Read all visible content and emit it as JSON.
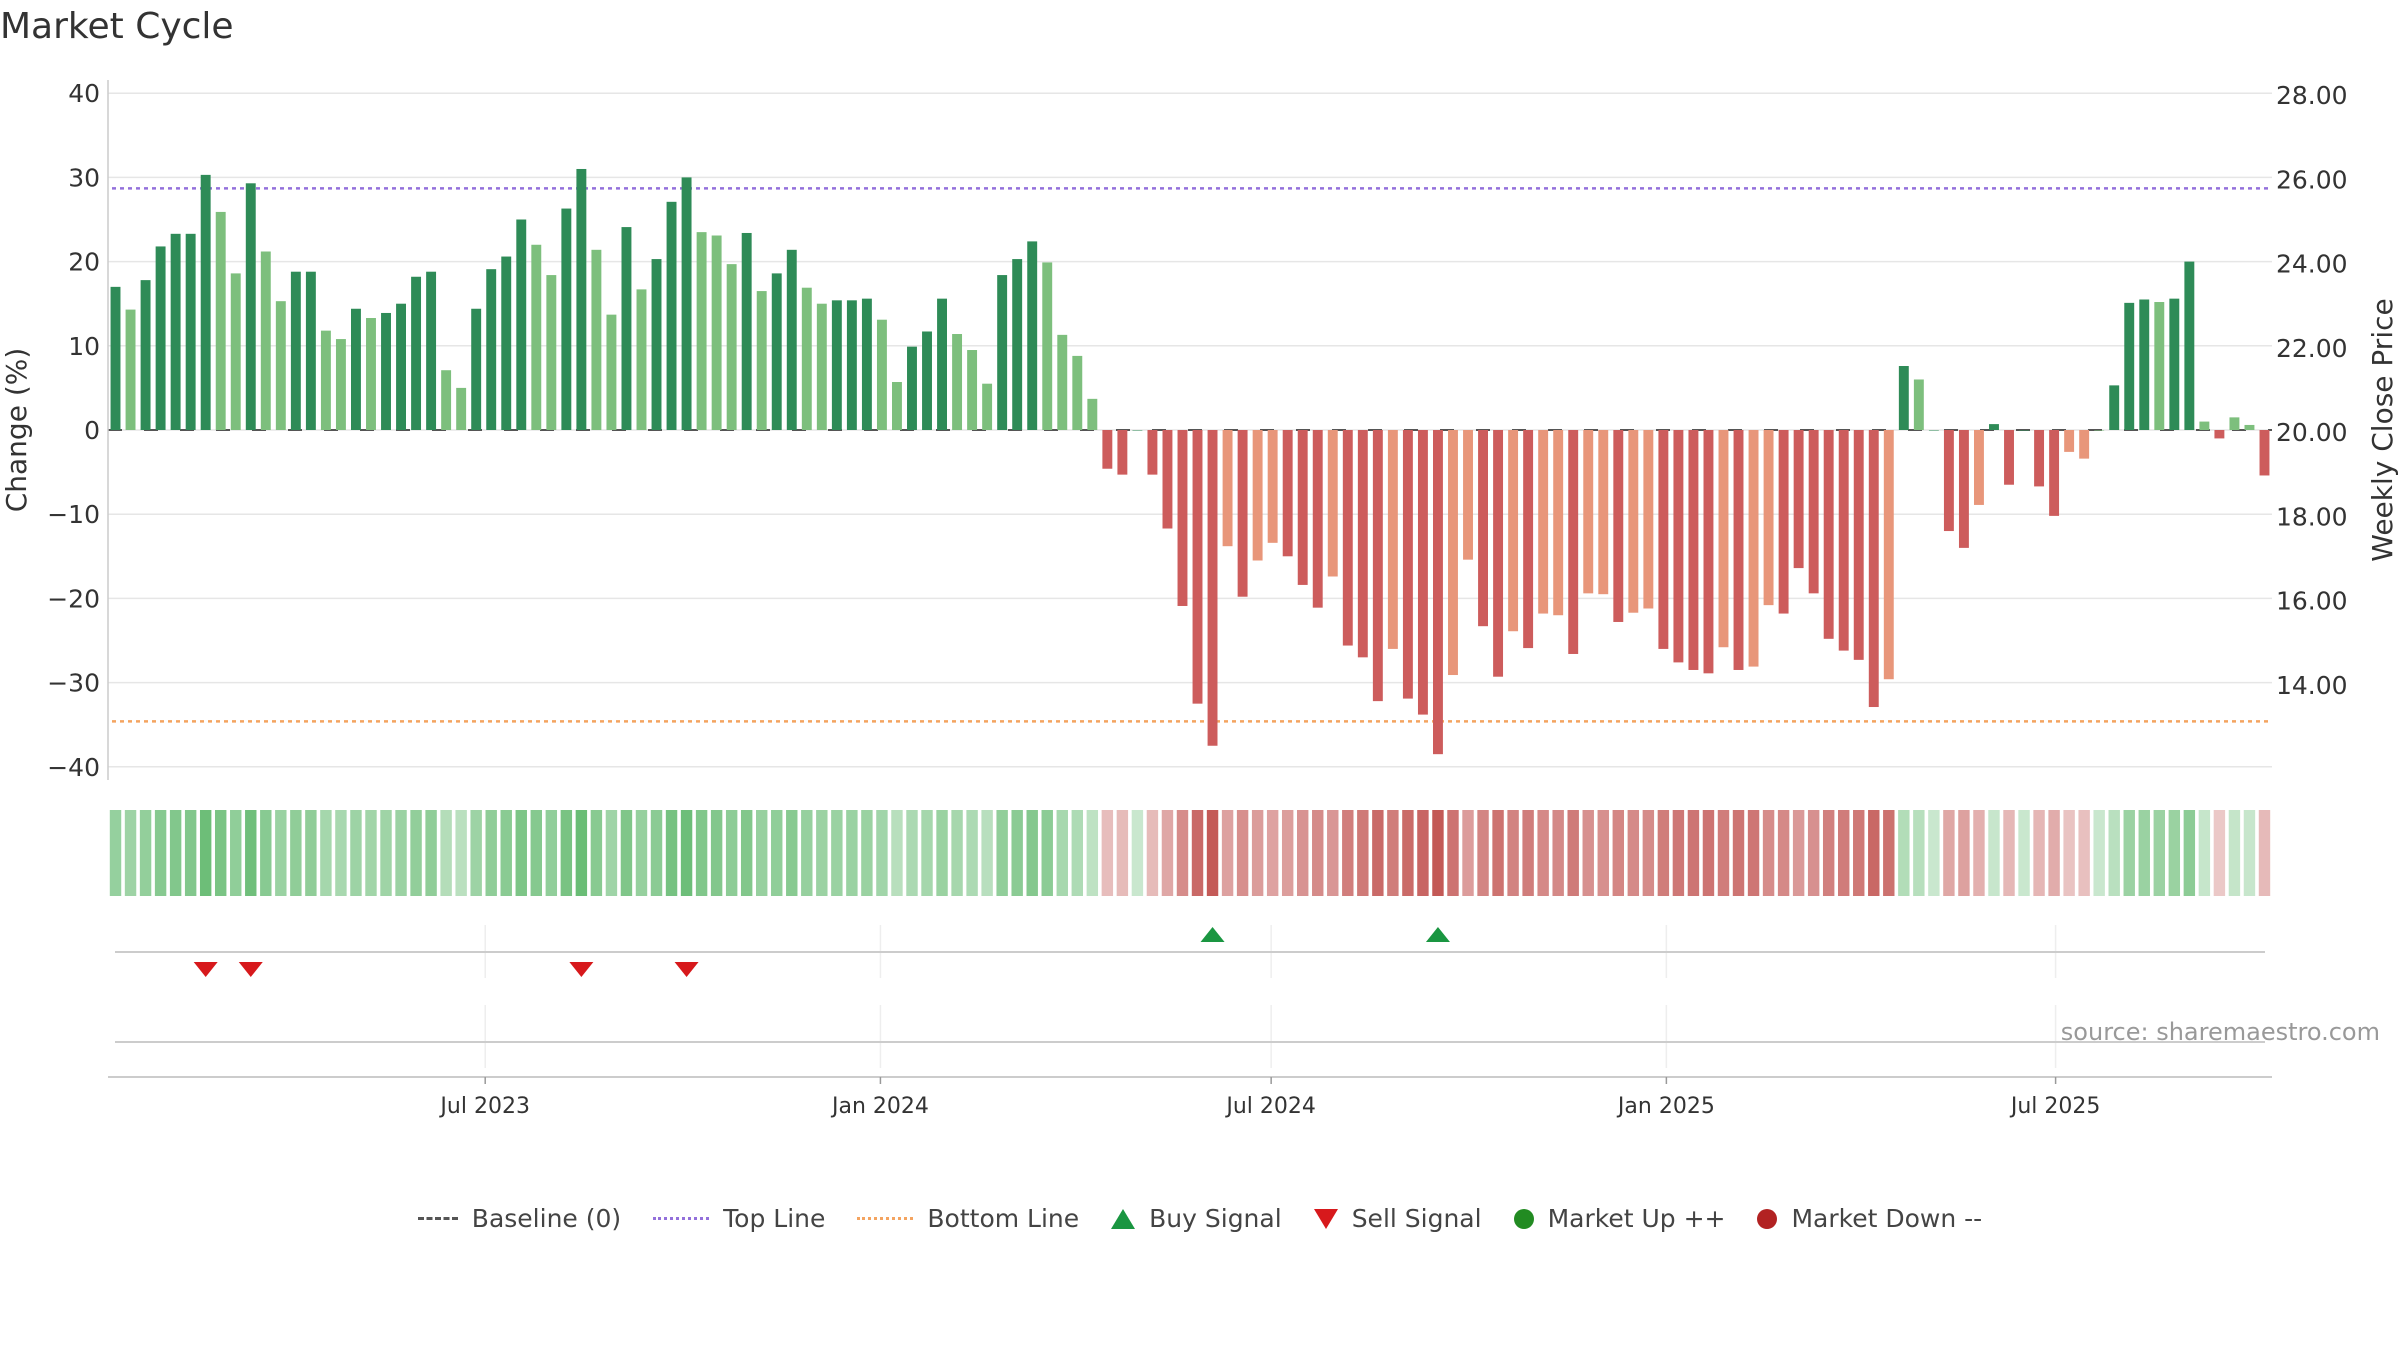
{
  "title": "Market Cycle",
  "source": "source: sharemaestro.com",
  "colors": {
    "up_dark": "#2e8b57",
    "up_light": "#7dbf7d",
    "down_dark": "#cd5c5c",
    "down_light": "#e8967a",
    "top_line": "#9370db",
    "bottom_line": "#f4a460",
    "baseline": "#555555",
    "buy": "#1a9641",
    "sell": "#d7191c",
    "market_up": "#228b22",
    "market_down": "#b22222"
  },
  "chart_data": {
    "type": "bar",
    "ylabel": "Change (%)",
    "y2label": "Weekly Close Price",
    "ylim": [
      -40,
      40
    ],
    "y2lim": [
      13.0,
      29.0
    ],
    "yticks": [
      "40",
      "30",
      "20",
      "10",
      "0",
      "−10",
      "−20",
      "−30",
      "−40"
    ],
    "y2ticks": [
      "28.00",
      "26.00",
      "24.00",
      "22.00",
      "20.00",
      "18.00",
      "16.00",
      "14.00"
    ],
    "x_ticks": [
      "Jul 2023",
      "Jan 2024",
      "Jul 2024",
      "Jan 2025",
      "Jul 2025"
    ],
    "x_tick_weeks": [
      25.1,
      51.4,
      77.4,
      103.7,
      129.6
    ],
    "top_line": 28.7,
    "bottom_line": -34.6,
    "grid": true,
    "values": [
      17,
      14.3,
      17.8,
      21.8,
      23.3,
      23.3,
      30.3,
      25.9,
      18.6,
      29.3,
      21.2,
      15.3,
      18.8,
      18.8,
      11.8,
      10.8,
      14.4,
      13.3,
      13.9,
      15.0,
      18.2,
      18.8,
      7.1,
      5.0,
      14.4,
      19.1,
      20.6,
      25.0,
      22.0,
      18.4,
      26.3,
      31.0,
      21.4,
      13.7,
      24.1,
      16.7,
      20.3,
      27.1,
      30.0,
      23.5,
      23.1,
      19.7,
      23.4,
      16.5,
      18.6,
      21.4,
      16.9,
      15.0,
      15.4,
      15.4,
      15.6,
      13.1,
      5.7,
      9.9,
      11.7,
      15.6,
      11.4,
      9.5,
      5.5,
      18.4,
      20.3,
      22.4,
      19.9,
      11.3,
      8.8,
      3.7,
      -4.6,
      -5.3,
      0,
      -5.3,
      -11.7,
      -20.9,
      -32.5,
      -37.5,
      -13.8,
      -19.8,
      -15.5,
      -13.4,
      -15.0,
      -18.4,
      -21.1,
      -17.4,
      -25.6,
      -27.0,
      -32.2,
      -26.0,
      -31.9,
      -33.8,
      -38.5,
      -29.1,
      -15.4,
      -23.3,
      -29.3,
      -23.9,
      -25.9,
      -21.8,
      -22.0,
      -26.6,
      -19.4,
      -19.5,
      -22.8,
      -21.7,
      -21.2,
      -26.0,
      -27.6,
      -28.5,
      -28.9,
      -25.8,
      -28.5,
      -28.1,
      -20.8,
      -21.8,
      -16.4,
      -19.4,
      -24.8,
      -26.2,
      -27.3,
      -32.9,
      -29.6,
      7.6,
      6.0,
      0,
      -12.0,
      -14.0,
      -8.9,
      0.7,
      -6.5,
      0,
      -6.7,
      -10.2,
      -2.6,
      -3.4,
      0,
      5.3,
      15.1,
      15.5,
      15.2,
      15.6,
      20.0,
      1.0,
      -1.0,
      1.5,
      0.6,
      -5.4
    ],
    "shade": [
      1,
      0,
      1,
      1,
      1,
      1,
      1,
      0,
      0,
      1,
      0,
      0,
      1,
      1,
      0,
      0,
      1,
      0,
      1,
      1,
      1,
      1,
      0,
      0,
      1,
      1,
      1,
      1,
      0,
      0,
      1,
      1,
      0,
      0,
      1,
      0,
      1,
      1,
      1,
      0,
      0,
      0,
      1,
      0,
      1,
      1,
      0,
      0,
      1,
      1,
      1,
      0,
      0,
      1,
      1,
      1,
      0,
      0,
      0,
      1,
      1,
      1,
      0,
      0,
      0,
      0,
      1,
      1,
      1,
      1,
      1,
      1,
      1,
      1,
      0,
      1,
      0,
      0,
      1,
      1,
      1,
      0,
      1,
      1,
      1,
      0,
      1,
      1,
      1,
      0,
      0,
      1,
      1,
      0,
      1,
      0,
      0,
      1,
      0,
      0,
      1,
      0,
      0,
      1,
      1,
      1,
      1,
      0,
      1,
      0,
      0,
      1,
      1,
      1,
      1,
      1,
      1,
      1,
      0,
      1,
      0,
      1,
      1,
      1,
      0,
      1,
      1,
      1,
      1,
      1,
      0,
      0,
      0,
      1,
      1,
      1,
      0,
      1,
      1,
      0,
      1,
      0,
      0,
      1
    ],
    "buy_signal_weeks": [
      73,
      88
    ],
    "sell_signal_weeks": [
      6,
      9,
      31,
      38
    ],
    "legend": [
      "Baseline (0)",
      "Top Line",
      "Bottom Line",
      "Buy Signal",
      "Sell Signal",
      "Market Up ++",
      "Market Down --"
    ]
  }
}
